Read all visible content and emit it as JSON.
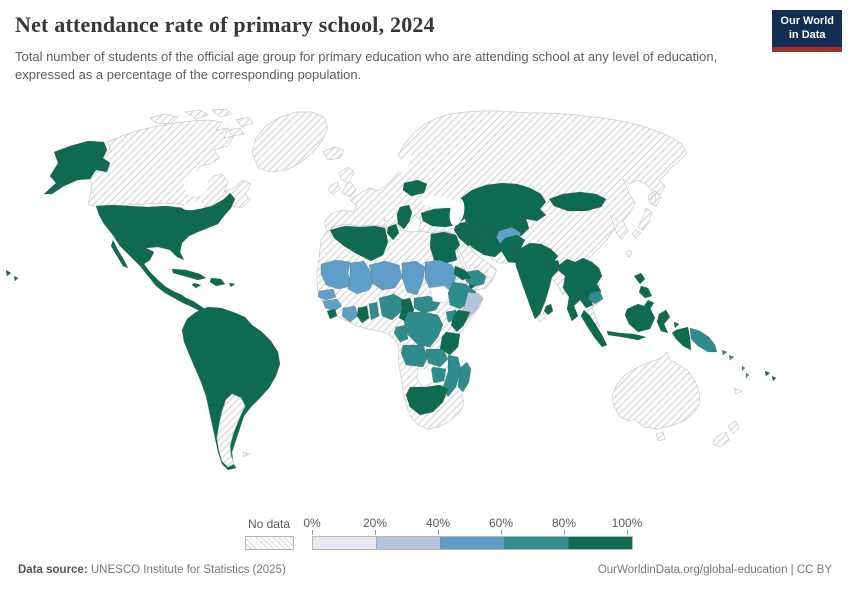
{
  "header": {
    "title": "Net attendance rate of primary school, 2024",
    "subtitle": "Total number of students of the official age group for primary education who are attending school at any level of education, expressed as a percentage of the corresponding population.",
    "logo": {
      "line1": "Our World",
      "line2": "in Data",
      "navy": "#132e52",
      "red": "#a33026"
    }
  },
  "legend": {
    "no_data_label": "No data",
    "tick_labels": [
      "0%",
      "20%",
      "40%",
      "60%",
      "80%",
      "100%"
    ],
    "bin_colors": [
      "#ece8f2",
      "#b6c3dd",
      "#5e9ec9",
      "#2e8d8c",
      "#0e6b52"
    ],
    "hatch_line_color": "#d6d6d6"
  },
  "footer": {
    "source_label": "Data source:",
    "source_text": " UNESCO Institute for Statistics (2025)",
    "link_text": "OurWorldinData.org/global-education | CC BY"
  },
  "chart_data": {
    "type": "choropleth_map",
    "title": "Net attendance rate of primary school, 2024",
    "year": 2024,
    "unit": "%",
    "legend_bins": [
      {
        "range": "0-20",
        "color": "#ece8f2"
      },
      {
        "range": "20-40",
        "color": "#b6c3dd"
      },
      {
        "range": "40-60",
        "color": "#5e9ec9"
      },
      {
        "range": "60-80",
        "color": "#2e8d8c"
      },
      {
        "range": "80-100",
        "color": "#0e6b52"
      }
    ],
    "no_data_style": "white with gray diagonal hatching",
    "regions": {
      "canada": "no-data",
      "greenland": "no-data",
      "united-states": "80-100",
      "mexico-central-america": "80-100",
      "cuba": "80-100",
      "hispaniola": "80-100",
      "jamaica": "80-100",
      "puerto-rico": "80-100",
      "south-america": "80-100",
      "argentina": "no-data",
      "falkland-islands": "no-data",
      "eurasia-landmass": "no-data",
      "united-kingdom": "no-data",
      "ireland": "no-data",
      "iceland": "no-data",
      "japan": "no-data",
      "sakhalin": "no-data",
      "taiwan": "no-data",
      "australia": "no-data",
      "tasmania": "no-data",
      "new-zealand": "no-data",
      "new-caledonia": "no-data",
      "belarus": "80-100",
      "moldova": "80-100",
      "serbia-balkans": "80-100",
      "turkey": "80-100",
      "caucasus": "80-100",
      "kazakhstan-central-asia": "80-100",
      "mongolia": "80-100",
      "afghanistan": "40-60",
      "iran": "80-100",
      "iraq": "80-100",
      "yemen": "60-80",
      "oman": "white",
      "pakistan": "80-100",
      "india": "80-100",
      "bangladesh": "80-100",
      "sri-lanka": "80-100",
      "southeast-asia-mainland": "80-100",
      "cambodia": "60-80",
      "philippines": "80-100",
      "indonesia": "80-100",
      "papua-new-guinea": "60-80",
      "solomon-islands": "60-80",
      "vanuatu": "60-80",
      "fiji": "80-100",
      "africa-landmass": "no-data",
      "algeria": "80-100",
      "tunisia": "80-100",
      "egypt": "80-100",
      "mauritania": "40-60",
      "mali": "40-60",
      "niger": "40-60",
      "chad": "40-60",
      "sudan": "40-60",
      "senegal": "40-60",
      "guinea": "40-60",
      "sierra-leone": "80-100",
      "cote-divoire": "40-60",
      "ghana": "80-100",
      "togo-benin": "60-80",
      "nigeria": "60-80",
      "cameroon": "80-100",
      "central-african-republic": "60-80",
      "south-sudan": "white",
      "eritrea": "80-100",
      "djibouti": "80-100",
      "ethiopia": "60-80",
      "somalia": "20-40",
      "uganda": "60-80",
      "kenya": "80-100",
      "drc": "60-80",
      "gabon-congo": "60-80",
      "tanzania": "80-100",
      "angola": "60-80",
      "zambia": "60-80",
      "mozambique": "60-80",
      "zimbabwe": "60-80",
      "botswana": "white",
      "south-africa": "80-100",
      "madagascar": "60-80"
    }
  }
}
